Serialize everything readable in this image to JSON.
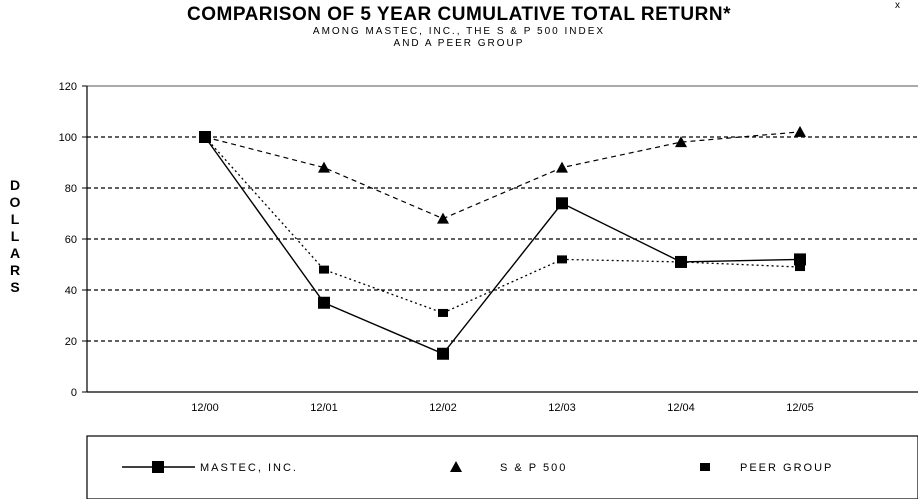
{
  "page": {
    "title": "COMPARISON OF 5 YEAR CUMULATIVE TOTAL RETURN*",
    "subtitle_line1": "AMONG MASTEC, INC., THE S & P 500 INDEX",
    "subtitle_line2": "AND A PEER GROUP",
    "corner_mark": "x"
  },
  "chart_data": {
    "type": "line",
    "title": "COMPARISON OF 5 YEAR CUMULATIVE TOTAL RETURN*",
    "ylabel": "DOLLARS",
    "xlabel": "",
    "categories": [
      "12/00",
      "12/01",
      "12/02",
      "12/03",
      "12/04",
      "12/05"
    ],
    "ylim": [
      0,
      120
    ],
    "yticks": [
      0,
      20,
      40,
      60,
      80,
      100,
      120
    ],
    "grid": "horizontal dashed",
    "legend_placement": "bottom",
    "series": [
      {
        "name": "MASTEC, INC.",
        "values": [
          100,
          35,
          15,
          74,
          51,
          52
        ],
        "marker": "square",
        "line": "solid"
      },
      {
        "name": "S & P 500",
        "values": [
          100,
          88,
          68,
          88,
          98,
          102
        ],
        "marker": "triangle",
        "line": "dashed"
      },
      {
        "name": "PEER GROUP",
        "values": [
          100,
          48,
          31,
          52,
          51,
          49
        ],
        "marker": "small-square",
        "line": "dotted"
      }
    ]
  }
}
